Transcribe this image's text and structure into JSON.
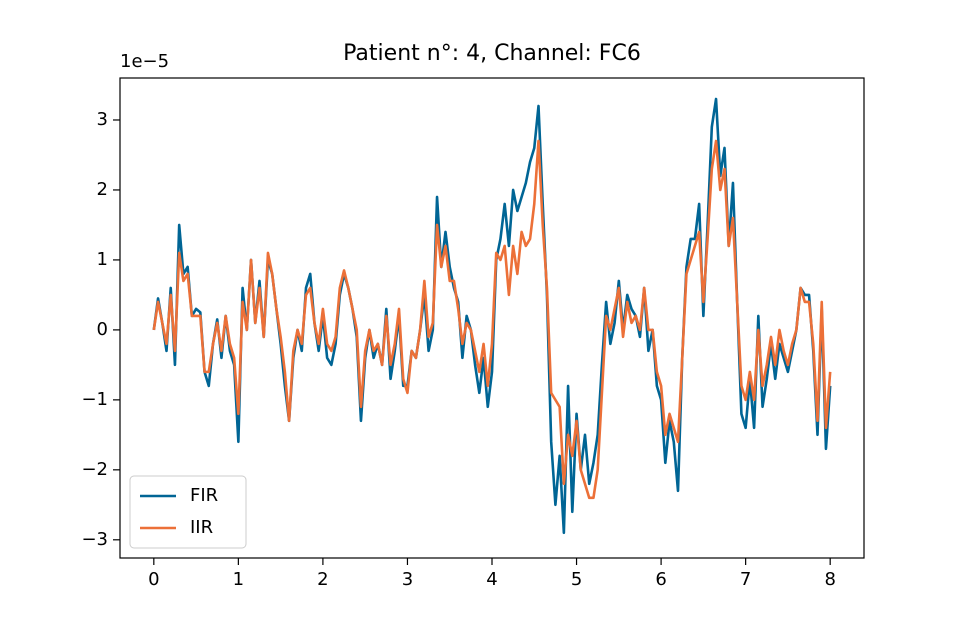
{
  "chart_data": {
    "type": "line",
    "title": "Patient n°: 4, Channel: FC6",
    "y_offset_label": "1e−5",
    "x": [
      0,
      0.05,
      0.1,
      0.15,
      0.2,
      0.25,
      0.3,
      0.35,
      0.4,
      0.45,
      0.5,
      0.55,
      0.6,
      0.65,
      0.7,
      0.75,
      0.8,
      0.85,
      0.9,
      0.95,
      1,
      1.05,
      1.1,
      1.15,
      1.2,
      1.25,
      1.3,
      1.35,
      1.4,
      1.45,
      1.5,
      1.55,
      1.6,
      1.65,
      1.7,
      1.75,
      1.8,
      1.85,
      1.9,
      1.95,
      2,
      2.05,
      2.1,
      2.15,
      2.2,
      2.25,
      2.3,
      2.35,
      2.4,
      2.45,
      2.5,
      2.55,
      2.6,
      2.65,
      2.7,
      2.75,
      2.8,
      2.85,
      2.9,
      2.95,
      3,
      3.05,
      3.1,
      3.15,
      3.2,
      3.25,
      3.3,
      3.35,
      3.4,
      3.45,
      3.5,
      3.55,
      3.6,
      3.65,
      3.7,
      3.75,
      3.8,
      3.85,
      3.9,
      3.95,
      4,
      4.05,
      4.1,
      4.15,
      4.2,
      4.25,
      4.3,
      4.35,
      4.4,
      4.45,
      4.5,
      4.55,
      4.6,
      4.65,
      4.7,
      4.75,
      4.8,
      4.85,
      4.9,
      4.95,
      5,
      5.05,
      5.1,
      5.15,
      5.2,
      5.25,
      5.3,
      5.35,
      5.4,
      5.45,
      5.5,
      5.55,
      5.6,
      5.65,
      5.7,
      5.75,
      5.8,
      5.85,
      5.9,
      5.95,
      6,
      6.05,
      6.1,
      6.15,
      6.2,
      6.25,
      6.3,
      6.35,
      6.4,
      6.45,
      6.5,
      6.55,
      6.6,
      6.65,
      6.7,
      6.75,
      6.8,
      6.85,
      6.9,
      6.95,
      7,
      7.05,
      7.1,
      7.15,
      7.2,
      7.25,
      7.3,
      7.35,
      7.4,
      7.45,
      7.5,
      7.55,
      7.6,
      7.65,
      7.7,
      7.75,
      7.8,
      7.85,
      7.9,
      7.95,
      8
    ],
    "series": [
      {
        "name": "FIR",
        "color": "#006595",
        "values": [
          0,
          0.45,
          0.1,
          -0.3,
          0.6,
          -0.5,
          1.5,
          0.8,
          0.9,
          0.2,
          0.3,
          0.25,
          -0.6,
          -0.8,
          -0.2,
          0.15,
          -0.4,
          0.2,
          -0.3,
          -0.5,
          -1.6,
          0.6,
          0.0,
          1.0,
          0.1,
          0.7,
          -0.1,
          1.0,
          0.8,
          0.3,
          -0.2,
          -0.8,
          -1.3,
          -0.4,
          0.0,
          -0.3,
          0.6,
          0.8,
          0.1,
          -0.3,
          0.2,
          -0.4,
          -0.5,
          -0.2,
          0.5,
          0.8,
          0.6,
          0.3,
          -0.1,
          -1.3,
          -0.4,
          0.0,
          -0.4,
          -0.2,
          -0.5,
          0.3,
          -0.7,
          -0.3,
          0.2,
          -0.8,
          -0.8,
          -0.3,
          -0.4,
          0.0,
          0.5,
          -0.3,
          0.0,
          1.9,
          0.9,
          1.4,
          0.9,
          0.6,
          0.4,
          -0.4,
          0.2,
          0.0,
          -0.5,
          -0.9,
          -0.4,
          -1.1,
          -0.6,
          1.0,
          1.3,
          1.8,
          1.2,
          2.0,
          1.7,
          1.9,
          2.1,
          2.4,
          2.6,
          3.2,
          1.8,
          0.5,
          -1.6,
          -2.5,
          -1.8,
          -2.9,
          -0.8,
          -2.6,
          -1.2,
          -2.0,
          -1.5,
          -2.2,
          -1.9,
          -1.5,
          -0.5,
          0.4,
          -0.2,
          0.1,
          0.7,
          0.0,
          0.5,
          0.3,
          0.2,
          -0.1,
          0.6,
          -0.3,
          0.0,
          -0.8,
          -1.0,
          -1.9,
          -1.3,
          -1.6,
          -2.3,
          -0.4,
          0.9,
          1.3,
          1.3,
          1.8,
          0.2,
          1.5,
          2.9,
          3.3,
          2.2,
          2.6,
          1.2,
          2.1,
          0.4,
          -1.2,
          -1.4,
          -0.7,
          -1.4,
          0.2,
          -1.1,
          -0.7,
          -0.2,
          -0.7,
          -0.2,
          -0.4,
          -0.6,
          -0.3,
          0.0,
          0.6,
          0.5,
          0.5,
          -0.3,
          -1.5,
          0.3,
          -1.7,
          -0.8
        ]
      },
      {
        "name": "IIR",
        "color": "#ec7038",
        "values": [
          0,
          0.4,
          0.1,
          -0.2,
          0.5,
          -0.3,
          1.1,
          0.7,
          0.8,
          0.2,
          0.2,
          0.2,
          -0.6,
          -0.6,
          -0.2,
          0.1,
          -0.3,
          0.2,
          -0.2,
          -0.4,
          -1.2,
          0.4,
          0.0,
          1.0,
          0.1,
          0.6,
          -0.1,
          1.1,
          0.8,
          0.3,
          -0.1,
          -0.6,
          -1.3,
          -0.3,
          0.0,
          -0.2,
          0.5,
          0.6,
          0.1,
          -0.2,
          0.3,
          -0.2,
          -0.3,
          -0.1,
          0.6,
          0.85,
          0.6,
          0.3,
          0.0,
          -1.1,
          -0.3,
          0.0,
          -0.3,
          -0.2,
          -0.5,
          0.2,
          -0.5,
          -0.2,
          0.3,
          -0.7,
          -0.9,
          -0.3,
          -0.4,
          0.0,
          0.7,
          -0.1,
          0.1,
          1.5,
          0.9,
          1.2,
          0.7,
          0.7,
          0.3,
          -0.2,
          0.1,
          0.0,
          -0.3,
          -0.6,
          -0.2,
          -0.8,
          -0.2,
          1.1,
          1.0,
          1.2,
          0.5,
          1.2,
          0.8,
          1.4,
          1.2,
          1.3,
          1.8,
          2.7,
          1.5,
          0.6,
          -0.9,
          -1.0,
          -1.1,
          -2.2,
          -1.5,
          -1.8,
          -1.3,
          -2.0,
          -2.2,
          -2.4,
          -2.4,
          -2.0,
          -0.9,
          0.2,
          0.0,
          0.3,
          0.6,
          -0.1,
          0.4,
          0.1,
          0.2,
          0.0,
          0.6,
          0.0,
          0.0,
          -0.6,
          -0.8,
          -1.5,
          -1.2,
          -1.4,
          -1.6,
          -0.4,
          0.8,
          1.0,
          1.2,
          1.4,
          0.4,
          1.3,
          2.3,
          2.7,
          2.0,
          2.3,
          1.2,
          1.6,
          0.4,
          -0.8,
          -1.0,
          -0.6,
          -1.0,
          0.0,
          -0.8,
          -0.5,
          -0.1,
          -0.5,
          0.0,
          -0.3,
          -0.5,
          -0.2,
          0.0,
          0.6,
          0.4,
          0.4,
          -0.2,
          -1.3,
          0.4,
          -1.4,
          -0.6
        ]
      }
    ],
    "xlim": [
      -0.4,
      8.4
    ],
    "ylim": [
      -3.26,
      3.6
    ],
    "xticks": [
      0,
      1,
      2,
      3,
      4,
      5,
      6,
      7,
      8
    ],
    "yticks": [
      {
        "value": -3,
        "label": "−3"
      },
      {
        "value": -2,
        "label": "−2"
      },
      {
        "value": -1,
        "label": "−1"
      },
      0,
      1,
      2,
      3
    ],
    "legend": "lower left"
  }
}
